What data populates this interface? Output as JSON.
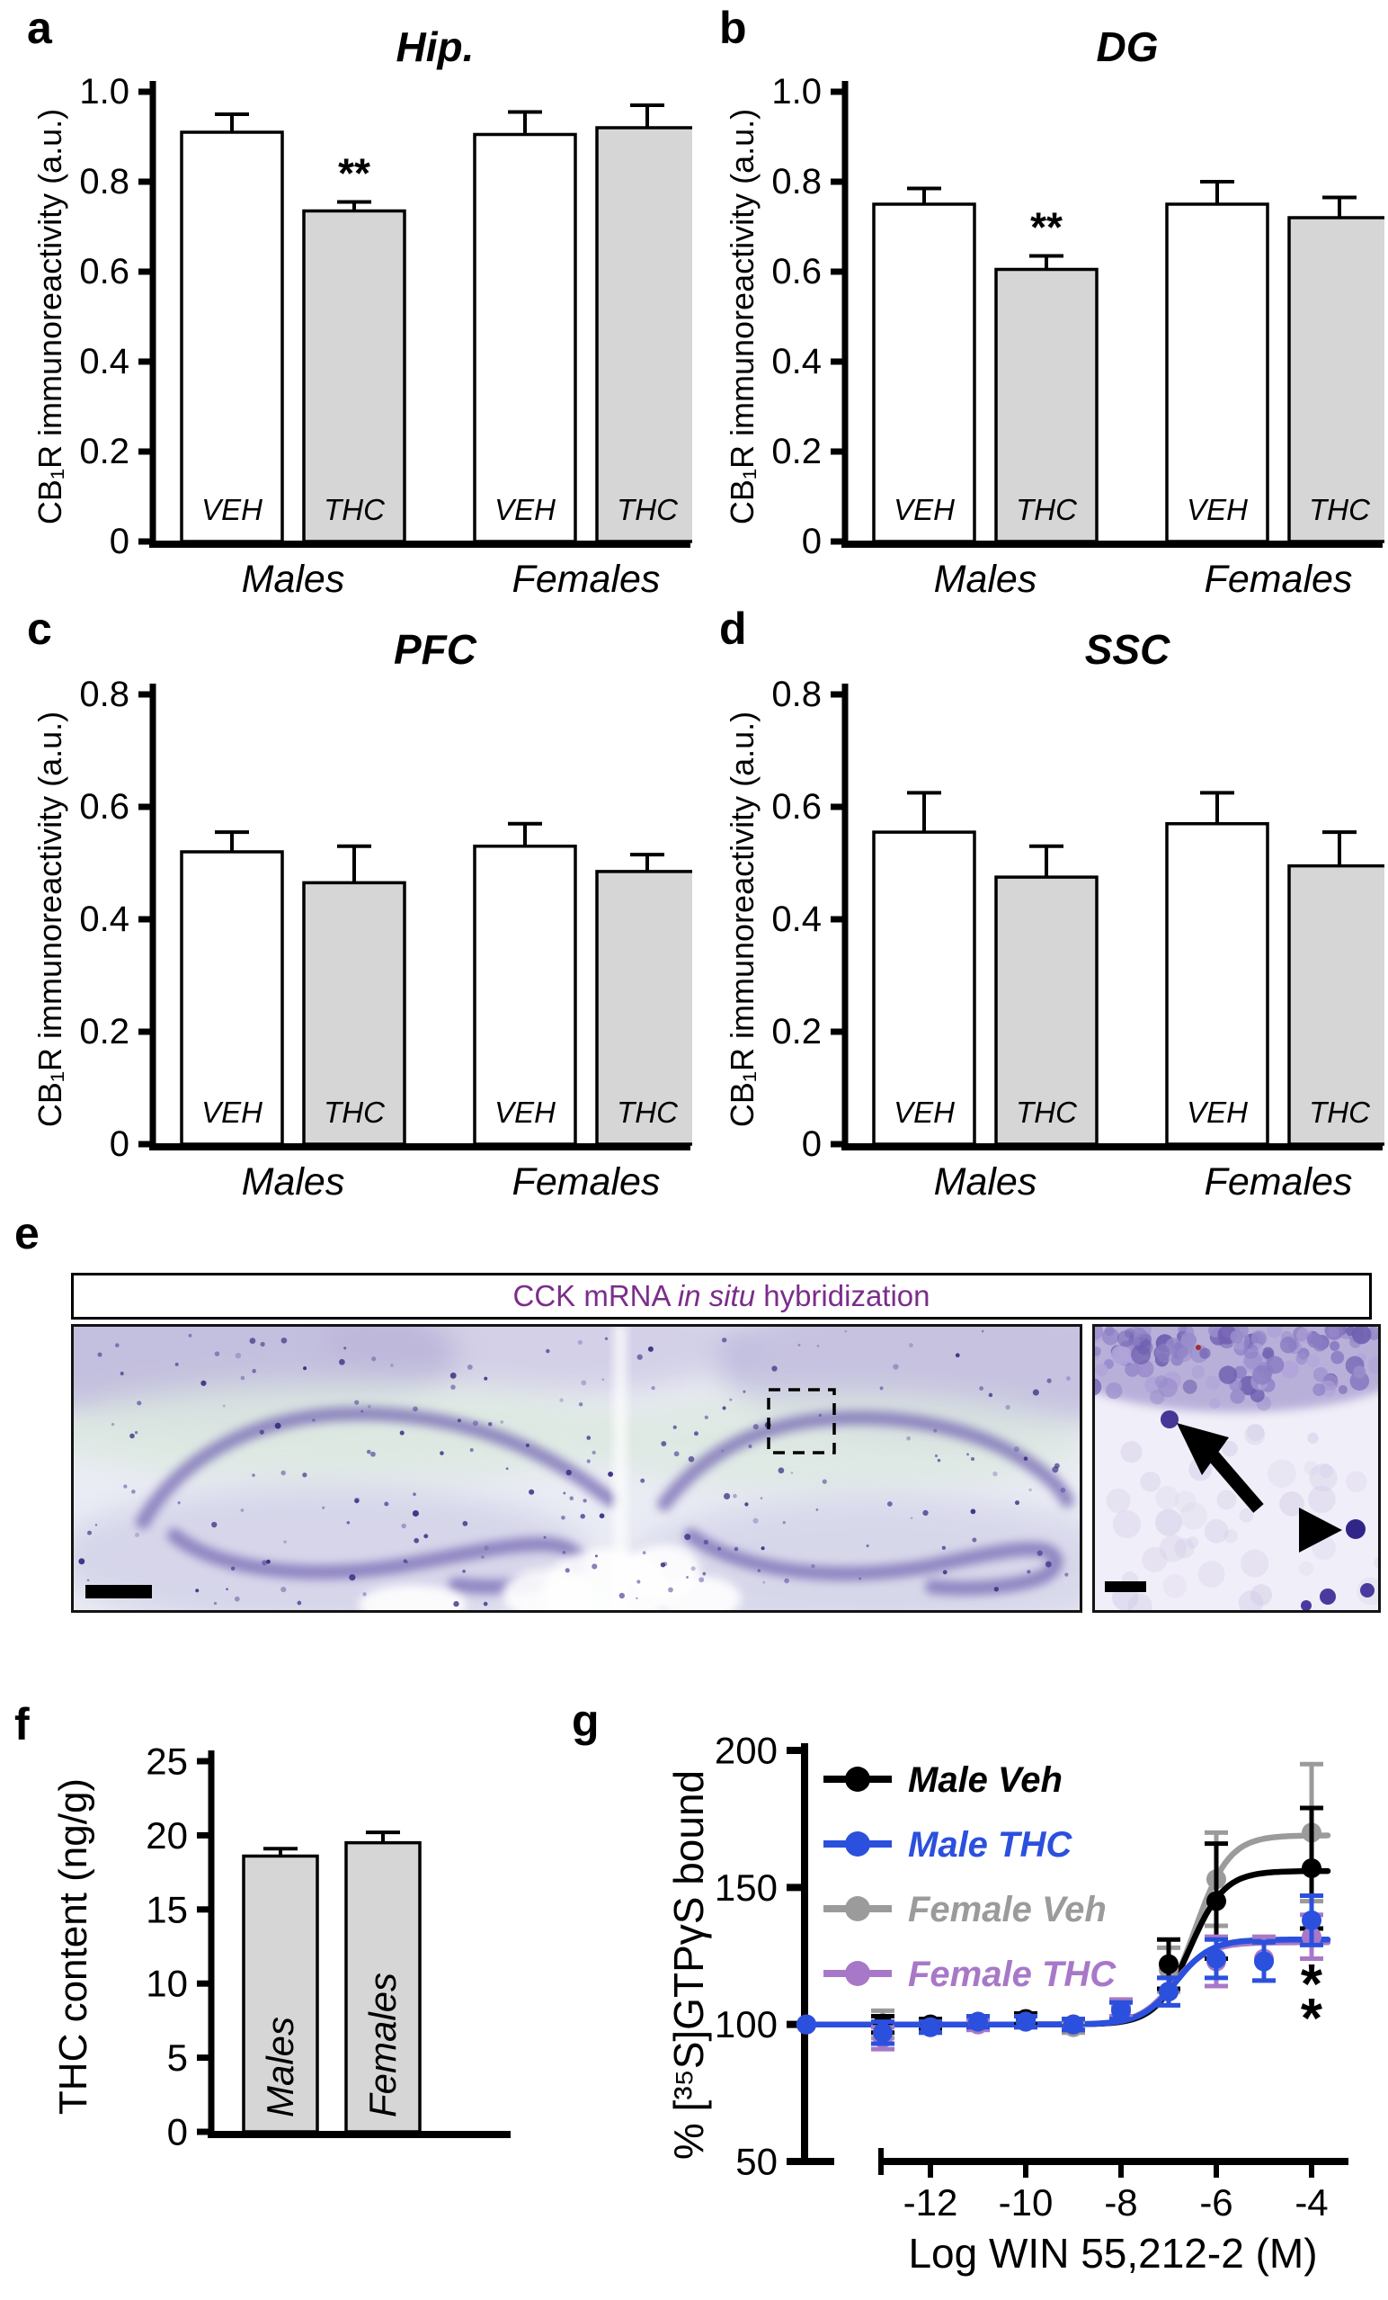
{
  "panel_labels": {
    "a": "a",
    "b": "b",
    "c": "c",
    "d": "d",
    "e": "e",
    "f": "f",
    "g": "g"
  },
  "panel_e": {
    "header_pre": "CCK mRNA ",
    "header_italic": "in situ",
    "header_post": " hybridization",
    "header_color": "#7b2d8b",
    "left_image": "coronal brain section, bilateral hippocampus, purple CCK mRNA staining",
    "right_image": "magnified inset with arrow and arrowhead marking labeled cells"
  },
  "colors": {
    "bar_gray": "#d6d6d6",
    "male_veh": "#000000",
    "male_thc": "#2b50dd",
    "female_veh": "#9b9b9b",
    "female_thc": "#a878c8"
  },
  "chart_data": [
    {
      "id": "hip",
      "panel": "a",
      "type": "bar",
      "title": "Hip.",
      "ylabel": "CB₁R immunoreactivity (a.u.)",
      "ylim": [
        0,
        1.0
      ],
      "yticks": [
        "0",
        "0.2",
        "0.4",
        "0.6",
        "0.8",
        "1.0"
      ],
      "groups": [
        "Males",
        "Females"
      ],
      "bars": [
        {
          "group": "Males",
          "label": "VEH",
          "value": 0.91,
          "err": 0.04,
          "fill": "white"
        },
        {
          "group": "Males",
          "label": "THC",
          "value": 0.735,
          "err": 0.02,
          "fill": "gray",
          "sig": "**"
        },
        {
          "group": "Females",
          "label": "VEH",
          "value": 0.905,
          "err": 0.05,
          "fill": "white"
        },
        {
          "group": "Females",
          "label": "THC",
          "value": 0.92,
          "err": 0.05,
          "fill": "gray"
        }
      ]
    },
    {
      "id": "dg",
      "panel": "b",
      "type": "bar",
      "title": "DG",
      "ylabel": "CB₁R immunoreactivity (a.u.)",
      "ylim": [
        0,
        1.0
      ],
      "yticks": [
        "0",
        "0.2",
        "0.4",
        "0.6",
        "0.8",
        "1.0"
      ],
      "groups": [
        "Males",
        "Females"
      ],
      "bars": [
        {
          "group": "Males",
          "label": "VEH",
          "value": 0.75,
          "err": 0.035,
          "fill": "white"
        },
        {
          "group": "Males",
          "label": "THC",
          "value": 0.605,
          "err": 0.03,
          "fill": "gray",
          "sig": "**"
        },
        {
          "group": "Females",
          "label": "VEH",
          "value": 0.75,
          "err": 0.05,
          "fill": "white"
        },
        {
          "group": "Females",
          "label": "THC",
          "value": 0.72,
          "err": 0.045,
          "fill": "gray"
        }
      ]
    },
    {
      "id": "pfc",
      "panel": "c",
      "type": "bar",
      "title": "PFC",
      "ylabel": "CB₁R immunoreactivity (a.u.)",
      "ylim": [
        0,
        0.8
      ],
      "yticks": [
        "0",
        "0.2",
        "0.4",
        "0.6",
        "0.8"
      ],
      "groups": [
        "Males",
        "Females"
      ],
      "bars": [
        {
          "group": "Males",
          "label": "VEH",
          "value": 0.52,
          "err": 0.035,
          "fill": "white"
        },
        {
          "group": "Males",
          "label": "THC",
          "value": 0.465,
          "err": 0.065,
          "fill": "gray"
        },
        {
          "group": "Females",
          "label": "VEH",
          "value": 0.53,
          "err": 0.04,
          "fill": "white"
        },
        {
          "group": "Females",
          "label": "THC",
          "value": 0.485,
          "err": 0.03,
          "fill": "gray"
        }
      ]
    },
    {
      "id": "ssc",
      "panel": "d",
      "type": "bar",
      "title": "SSC",
      "ylabel": "CB₁R immunoreactivity (a.u.)",
      "ylim": [
        0,
        0.8
      ],
      "yticks": [
        "0",
        "0.2",
        "0.4",
        "0.6",
        "0.8"
      ],
      "groups": [
        "Males",
        "Females"
      ],
      "bars": [
        {
          "group": "Males",
          "label": "VEH",
          "value": 0.555,
          "err": 0.07,
          "fill": "white"
        },
        {
          "group": "Males",
          "label": "THC",
          "value": 0.475,
          "err": 0.055,
          "fill": "gray"
        },
        {
          "group": "Females",
          "label": "VEH",
          "value": 0.57,
          "err": 0.055,
          "fill": "white"
        },
        {
          "group": "Females",
          "label": "THC",
          "value": 0.495,
          "err": 0.06,
          "fill": "gray"
        }
      ]
    },
    {
      "id": "thc",
      "panel": "f",
      "type": "bar",
      "title": "",
      "ylabel": "THC content (ng/g)",
      "ylim": [
        0,
        25
      ],
      "yticks": [
        "0",
        "5",
        "10",
        "15",
        "20",
        "25"
      ],
      "inner_labels": true,
      "bars": [
        {
          "label": "Males",
          "value": 18.6,
          "err": 0.5,
          "fill": "gray"
        },
        {
          "label": "Females",
          "value": 19.5,
          "err": 0.7,
          "fill": "gray"
        }
      ]
    },
    {
      "id": "gtp",
      "panel": "g",
      "type": "line",
      "ylabel": "% [³⁵S]GTPγS bound",
      "xlabel": "Log WIN 55,212-2 (M)",
      "ylim": [
        50,
        200
      ],
      "yticks": [
        50,
        100,
        150,
        200
      ],
      "xticks": [
        -12,
        -10,
        -8,
        -6,
        -4
      ],
      "basal_x": -14.7,
      "legend_position": "top-left",
      "series": [
        {
          "name": "Male Veh",
          "color": "#000000",
          "fit": {
            "bottom": 100,
            "top": 156,
            "ec50": -6.55,
            "hill": 1.2
          },
          "points": [
            [
              -14.7,
              100,
              0
            ],
            [
              -13,
              100,
              3
            ],
            [
              -12,
              100,
              2
            ],
            [
              -11,
              101,
              2
            ],
            [
              -10,
              102,
              2
            ],
            [
              -9,
              100,
              2
            ],
            [
              -8,
              106,
              3
            ],
            [
              -7,
              122,
              9
            ],
            [
              -6,
              145,
              21
            ],
            [
              -4,
              157,
              22
            ]
          ]
        },
        {
          "name": "Male THC",
          "color": "#2b50dd",
          "fit": {
            "bottom": 100,
            "top": 131,
            "ec50": -6.85,
            "hill": 1.2
          },
          "points": [
            [
              -14.7,
              100,
              0
            ],
            [
              -13,
              97,
              4
            ],
            [
              -12,
              99,
              2
            ],
            [
              -11,
              101,
              2
            ],
            [
              -10,
              101,
              2
            ],
            [
              -9,
              100,
              2
            ],
            [
              -8,
              105,
              3
            ],
            [
              -7,
              112,
              5
            ],
            [
              -6,
              124,
              7
            ],
            [
              -5,
              123,
              7
            ],
            [
              -4,
              138,
              9
            ]
          ]
        },
        {
          "name": "Female Veh",
          "color": "#9b9b9b",
          "fit": {
            "bottom": 100,
            "top": 169,
            "ec50": -6.45,
            "hill": 1.2
          },
          "points": [
            [
              -14.7,
              100,
              0
            ],
            [
              -13,
              100,
              5
            ],
            [
              -12,
              100,
              2
            ],
            [
              -11,
              101,
              2
            ],
            [
              -10,
              102,
              2
            ],
            [
              -9,
              99,
              2
            ],
            [
              -8,
              106,
              3
            ],
            [
              -7,
              120,
              8
            ],
            [
              -6,
              153,
              17
            ],
            [
              -4,
              170,
              25
            ]
          ]
        },
        {
          "name": "Female THC",
          "color": "#a878c8",
          "fit": {
            "bottom": 100,
            "top": 130,
            "ec50": -6.9,
            "hill": 1.2
          },
          "points": [
            [
              -14.7,
              100,
              0
            ],
            [
              -13,
              95,
              4
            ],
            [
              -12,
              99,
              2
            ],
            [
              -11,
              100,
              2
            ],
            [
              -10,
              101,
              2
            ],
            [
              -9,
              100,
              2
            ],
            [
              -8,
              106,
              3
            ],
            [
              -7,
              112,
              5
            ],
            [
              -6,
              123,
              9
            ],
            [
              -5,
              124,
              8
            ],
            [
              -4,
              132,
              8
            ]
          ]
        }
      ],
      "annotations": [
        {
          "text": "*",
          "x": -4.0,
          "y": 114.5
        },
        {
          "text": "*",
          "x": -4.0,
          "y": 102
        }
      ]
    }
  ]
}
